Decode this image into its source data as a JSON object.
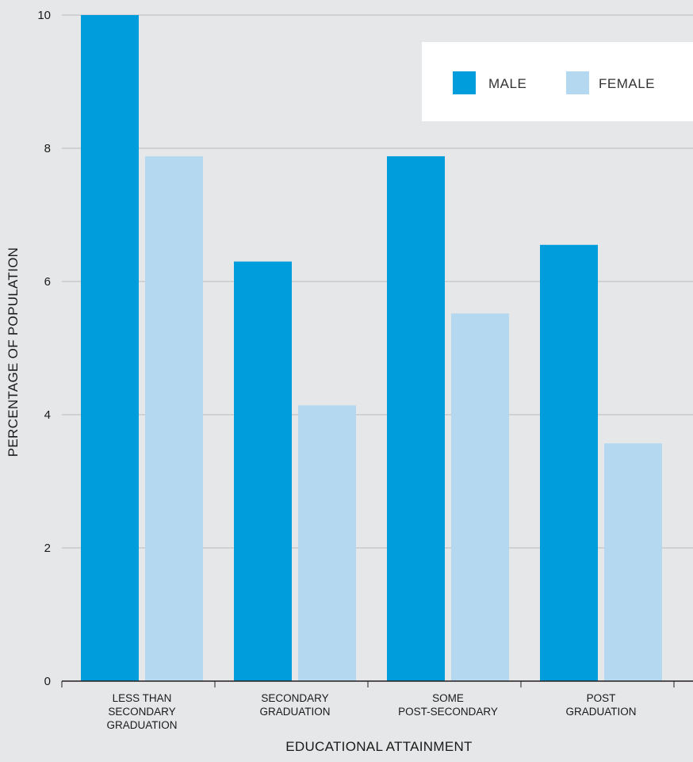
{
  "chart_data": {
    "type": "bar",
    "categories": [
      [
        "LESS THAN",
        "SECONDARY",
        "GRADUATION"
      ],
      [
        "SECONDARY",
        "GRADUATION"
      ],
      [
        "SOME",
        "POST-SECONDARY"
      ],
      [
        "POST",
        "GRADUATION"
      ]
    ],
    "series": [
      {
        "name": "MALE",
        "color": "#009ddc",
        "values": [
          10,
          6.3,
          7.88,
          6.55
        ]
      },
      {
        "name": "FEMALE",
        "color": "#b5d8f1",
        "values": [
          7.88,
          4.14,
          5.52,
          3.57
        ]
      }
    ],
    "xlabel": "EDUCATIONAL ATTAINMENT",
    "ylabel": "PERCENTAGE OF POPULATION",
    "ylim": [
      0,
      10
    ],
    "yticks": [
      "0",
      "2",
      "4",
      "6",
      "8",
      "10"
    ],
    "grid": true,
    "legend_position": "top-right",
    "background": "#e6e7e8"
  }
}
